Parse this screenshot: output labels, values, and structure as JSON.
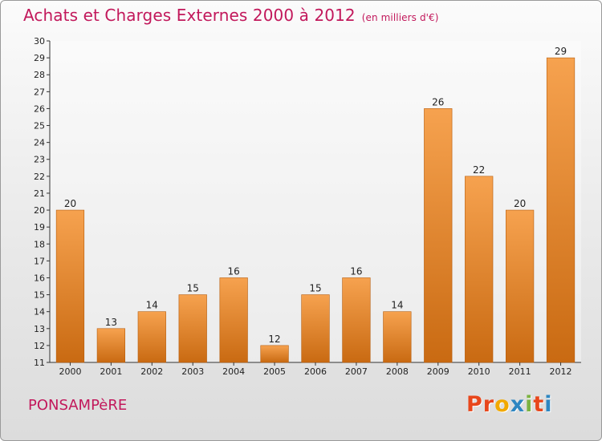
{
  "title": "Achats et Charges Externes 2000 à 2012",
  "subtitle": "(en milliers d'€)",
  "town": "PONSAMPèRE",
  "logo": {
    "text": "Proxiti",
    "letters": [
      {
        "ch": "P",
        "color": "#e8471c"
      },
      {
        "ch": "r",
        "color": "#e8471c"
      },
      {
        "ch": "o",
        "color": "#f2a900"
      },
      {
        "ch": "x",
        "color": "#2e86c1"
      },
      {
        "ch": "i",
        "color": "#7cb342"
      },
      {
        "ch": "t",
        "color": "#e8471c"
      },
      {
        "ch": "i",
        "color": "#2e86c1"
      }
    ]
  },
  "colors": {
    "bar_top": "#f6a24f",
    "bar_bottom": "#c96a12",
    "bar_edge": "#b75d0c",
    "title": "#c2185b"
  },
  "chart_data": {
    "type": "bar",
    "title": "Achats et Charges Externes 2000 à 2012",
    "subtitle": "(en milliers d'€)",
    "categories": [
      "2000",
      "2001",
      "2002",
      "2003",
      "2004",
      "2005",
      "2006",
      "2007",
      "2008",
      "2009",
      "2010",
      "2011",
      "2012"
    ],
    "values": [
      20,
      13,
      14,
      15,
      16,
      12,
      15,
      16,
      14,
      26,
      22,
      20,
      29
    ],
    "ylim": [
      11,
      30
    ],
    "yticks": [
      11,
      12,
      13,
      14,
      15,
      16,
      17,
      18,
      19,
      20,
      21,
      22,
      23,
      24,
      25,
      26,
      27,
      28,
      29,
      30
    ],
    "grid": false,
    "data_labels": true
  }
}
